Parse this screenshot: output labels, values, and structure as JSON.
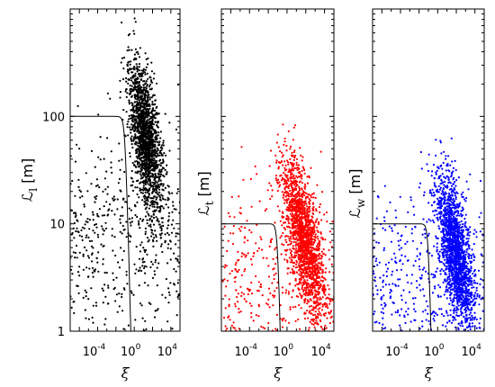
{
  "chart_data": [
    {
      "type": "scatter",
      "id": "l",
      "xscale": "log",
      "yscale": "log",
      "xlim": [
        1e-07,
        100000.0
      ],
      "ylim": [
        1,
        1000
      ],
      "xticks": [
        {
          "base": "10",
          "exp": "-4"
        },
        {
          "base": "10",
          "exp": "0"
        },
        {
          "base": "10",
          "exp": "4"
        }
      ],
      "yticks": [
        "1",
        "10",
        "100"
      ],
      "xlabel": "ξ",
      "ylabel_main": "ℒ",
      "ylabel_sub": "l",
      "ylabel_unit": "[m]",
      "series": [
        {
          "color": "#000000",
          "point_count": 2200,
          "cloud": {
            "x_center_log": 1.3,
            "y_center_log": 1.8,
            "x_spread": 0.9,
            "y_spread": 0.3
          }
        }
      ],
      "curve": {
        "plateau": 100,
        "knee_xi": 0.1,
        "slope": -3.2
      }
    },
    {
      "type": "scatter",
      "id": "t",
      "xscale": "log",
      "yscale": "log",
      "xlim": [
        1e-07,
        100000.0
      ],
      "ylim": [
        1,
        1000
      ],
      "xticks": [
        {
          "base": "10",
          "exp": "-4"
        },
        {
          "base": "10",
          "exp": "0"
        },
        {
          "base": "10",
          "exp": "4"
        }
      ],
      "yticks": [],
      "xlabel": "ξ",
      "ylabel_main": "ℒ",
      "ylabel_sub": "t",
      "ylabel_unit": "[m]",
      "series": [
        {
          "color": "#ff0000",
          "point_count": 2200,
          "cloud": {
            "x_center_log": 1.8,
            "y_center_log": 0.85,
            "x_spread": 1.1,
            "y_spread": 0.28
          }
        }
      ],
      "curve": {
        "plateau": 10,
        "knee_xi": 0.1,
        "slope": -3.5
      }
    },
    {
      "type": "scatter",
      "id": "w",
      "xscale": "log",
      "yscale": "log",
      "xlim": [
        1e-07,
        100000.0
      ],
      "ylim": [
        1,
        1000
      ],
      "xticks": [
        {
          "base": "10",
          "exp": "-4"
        },
        {
          "base": "10",
          "exp": "0"
        },
        {
          "base": "10",
          "exp": "4"
        }
      ],
      "yticks": [],
      "xlabel": "ξ",
      "ylabel_main": "ℒ",
      "ylabel_sub": "w",
      "ylabel_unit": "[m]",
      "series": [
        {
          "color": "#0000ff",
          "point_count": 2200,
          "cloud": {
            "x_center_log": 1.9,
            "y_center_log": 0.75,
            "x_spread": 1.0,
            "y_spread": 0.28
          }
        }
      ],
      "curve": {
        "plateau": 10,
        "knee_xi": 0.1,
        "slope": -3.5
      }
    }
  ]
}
